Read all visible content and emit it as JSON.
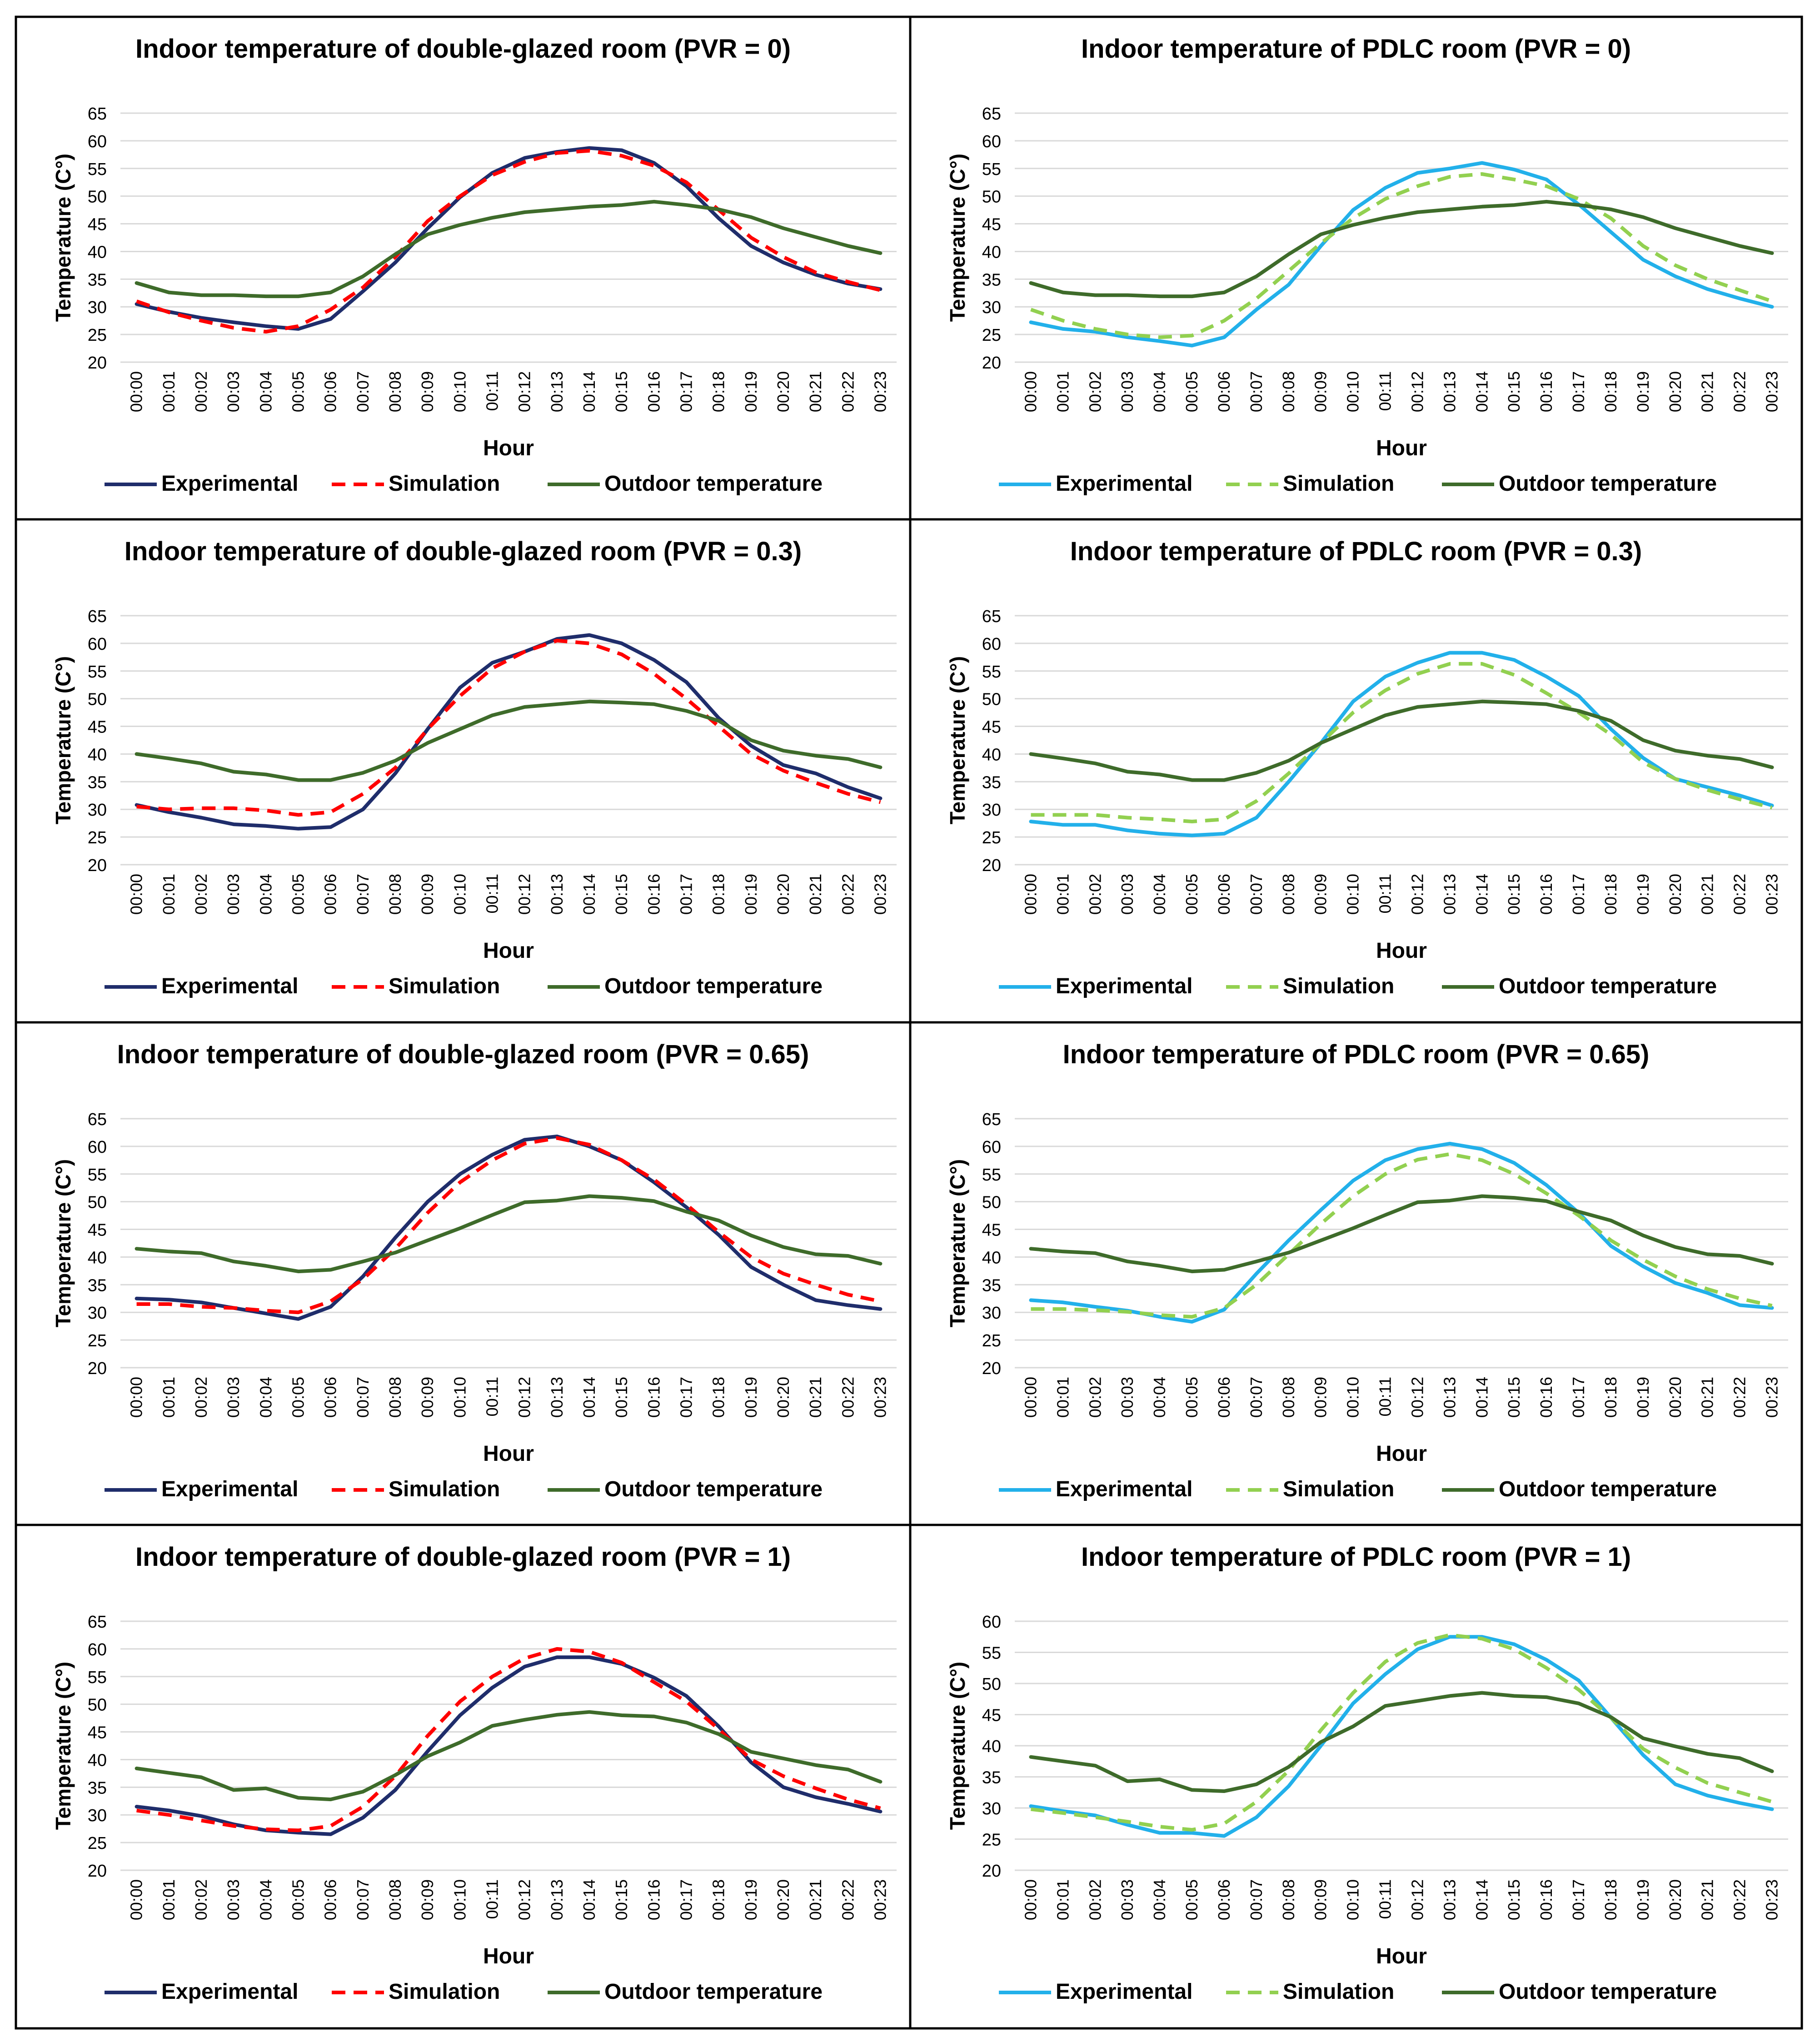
{
  "hours": [
    "00:00",
    "00:01",
    "00:02",
    "00:03",
    "00:04",
    "00:05",
    "00:06",
    "00:07",
    "00:08",
    "00:09",
    "00:10",
    "00:11",
    "00:12",
    "00:13",
    "00:14",
    "00:15",
    "00:16",
    "00:17",
    "00:18",
    "00:19",
    "00:20",
    "00:21",
    "00:22",
    "00:23"
  ],
  "colors": {
    "dg_experimental": "#1f2d6b",
    "dg_simulation": "#ff0000",
    "pdlc_experimental": "#22b0ea",
    "pdlc_simulation": "#92d050",
    "outdoor": "#3e6b2a",
    "grid": "#d9d9d9",
    "border": "#000000"
  },
  "chart_data": [
    {
      "type": "line",
      "title": "Indoor temperature of double-glazed room (PVR = 0)",
      "xlabel": "Hour",
      "ylabel": "Temperature (C°)",
      "ylim": [
        20,
        65
      ],
      "yticks": [
        20,
        25,
        30,
        35,
        40,
        45,
        50,
        55,
        60,
        65
      ],
      "series": [
        {
          "name": "Experimental",
          "style": "solid",
          "color": "#1f2d6b",
          "values": [
            30.5,
            29.1,
            28,
            27.2,
            26.5,
            26,
            27.8,
            32.8,
            38,
            44.2,
            49.8,
            54.2,
            56.9,
            58,
            58.7,
            58.3,
            56,
            51.8,
            46,
            41,
            38,
            35.8,
            34.2,
            33.2
          ]
        },
        {
          "name": "Simulation",
          "style": "dashed",
          "color": "#ff0000",
          "values": [
            31,
            29,
            27.5,
            26.2,
            25.5,
            26.5,
            29.5,
            33.5,
            39,
            45.5,
            50,
            53.8,
            56.2,
            57.8,
            58.2,
            57.3,
            55.5,
            52.5,
            47.5,
            42.5,
            39,
            36.2,
            34.5,
            33
          ]
        },
        {
          "name": "Outdoor temperature",
          "style": "solid",
          "color": "#3e6b2a",
          "values": [
            34.3,
            32.6,
            32.1,
            32.1,
            31.9,
            31.9,
            32.6,
            35.5,
            39.5,
            43.1,
            44.8,
            46.1,
            47.1,
            47.6,
            48.1,
            48.4,
            49,
            48.4,
            47.6,
            46.2,
            44.2,
            42.6,
            41,
            39.7
          ]
        }
      ]
    },
    {
      "type": "line",
      "title": "Indoor temperature of PDLC room (PVR = 0)",
      "xlabel": "Hour",
      "ylabel": "Temperature (C°)",
      "ylim": [
        20,
        65
      ],
      "yticks": [
        20,
        25,
        30,
        35,
        40,
        45,
        50,
        55,
        60,
        65
      ],
      "series": [
        {
          "name": "Experimental",
          "style": "solid",
          "color": "#22b0ea",
          "values": [
            27.2,
            26,
            25.5,
            24.5,
            23.8,
            23,
            24.5,
            29.5,
            34,
            41,
            47.5,
            51.5,
            54.2,
            55,
            56,
            54.8,
            53,
            48.5,
            43.5,
            38.5,
            35.5,
            33.2,
            31.5,
            30
          ]
        },
        {
          "name": "Simulation",
          "style": "dashed",
          "color": "#92d050",
          "values": [
            29.5,
            27.5,
            26,
            25,
            24.5,
            24.8,
            27.5,
            31.5,
            36.5,
            41.5,
            46,
            49.5,
            51.8,
            53.5,
            54,
            53,
            51.8,
            49.5,
            46,
            41,
            37.5,
            35,
            33,
            31
          ]
        },
        {
          "name": "Outdoor temperature",
          "style": "solid",
          "color": "#3e6b2a",
          "values": [
            34.3,
            32.6,
            32.1,
            32.1,
            31.9,
            31.9,
            32.6,
            35.5,
            39.5,
            43.1,
            44.8,
            46.1,
            47.1,
            47.6,
            48.1,
            48.4,
            49,
            48.4,
            47.6,
            46.2,
            44.2,
            42.6,
            41,
            39.7
          ]
        }
      ]
    },
    {
      "type": "line",
      "title": "Indoor temperature of double-glazed room (PVR = 0.3)",
      "xlabel": "Hour",
      "ylabel": "Temperature (C°)",
      "ylim": [
        20,
        65
      ],
      "yticks": [
        20,
        25,
        30,
        35,
        40,
        45,
        50,
        55,
        60,
        65
      ],
      "series": [
        {
          "name": "Experimental",
          "style": "solid",
          "color": "#1f2d6b",
          "values": [
            30.8,
            29.5,
            28.5,
            27.3,
            27,
            26.5,
            26.8,
            30,
            36.5,
            44.5,
            52,
            56.5,
            58.5,
            60.8,
            61.5,
            60,
            57,
            53,
            46.5,
            41.5,
            38,
            36.5,
            34,
            32
          ]
        },
        {
          "name": "Simulation",
          "style": "dashed",
          "color": "#ff0000",
          "values": [
            30.5,
            30,
            30.2,
            30.2,
            29.8,
            29,
            29.5,
            32.8,
            37.5,
            44.5,
            50.5,
            55.5,
            58.5,
            60.5,
            60,
            58,
            54.5,
            50,
            45,
            40,
            37,
            34.8,
            32.8,
            31.3
          ]
        },
        {
          "name": "Outdoor temperature",
          "style": "solid",
          "color": "#3e6b2a",
          "values": [
            40,
            39.2,
            38.3,
            36.8,
            36.3,
            35.3,
            35.3,
            36.6,
            38.8,
            42,
            44.5,
            47,
            48.5,
            49,
            49.5,
            49.3,
            49,
            47.8,
            46,
            42.5,
            40.6,
            39.7,
            39.1,
            37.6
          ]
        }
      ]
    },
    {
      "type": "line",
      "title": "Indoor temperature of PDLC room (PVR = 0.3)",
      "xlabel": "Hour",
      "ylabel": "Temperature (C°)",
      "ylim": [
        20,
        65
      ],
      "yticks": [
        20,
        25,
        30,
        35,
        40,
        45,
        50,
        55,
        60,
        65
      ],
      "series": [
        {
          "name": "Experimental",
          "style": "solid",
          "color": "#22b0ea",
          "values": [
            27.8,
            27.2,
            27.2,
            26.2,
            25.6,
            25.3,
            25.6,
            28.5,
            35,
            42,
            49.5,
            54,
            56.5,
            58.3,
            58.3,
            57,
            54,
            50.5,
            44.5,
            39.3,
            35.5,
            34,
            32.5,
            30.7
          ]
        },
        {
          "name": "Simulation",
          "style": "dashed",
          "color": "#92d050",
          "values": [
            29,
            29,
            29,
            28.5,
            28.2,
            27.8,
            28.2,
            31.5,
            36.5,
            42,
            47.5,
            51.5,
            54.5,
            56.3,
            56.3,
            54.3,
            51,
            47.5,
            43.5,
            38.5,
            35.5,
            33.5,
            31.8,
            30.3
          ]
        },
        {
          "name": "Outdoor temperature",
          "style": "solid",
          "color": "#3e6b2a",
          "values": [
            40,
            39.2,
            38.3,
            36.8,
            36.3,
            35.3,
            35.3,
            36.6,
            38.8,
            42,
            44.5,
            47,
            48.5,
            49,
            49.5,
            49.3,
            49,
            47.8,
            46,
            42.5,
            40.6,
            39.7,
            39.1,
            37.6
          ]
        }
      ]
    },
    {
      "type": "line",
      "title": "Indoor temperature of double-glazed room (PVR = 0.65)",
      "xlabel": "Hour",
      "ylabel": "Temperature (C°)",
      "ylim": [
        20,
        65
      ],
      "yticks": [
        20,
        25,
        30,
        35,
        40,
        45,
        50,
        55,
        60,
        65
      ],
      "series": [
        {
          "name": "Experimental",
          "style": "solid",
          "color": "#1f2d6b",
          "values": [
            32.5,
            32.3,
            31.8,
            30.8,
            29.8,
            28.8,
            31,
            36.5,
            43.5,
            50,
            55,
            58.5,
            61.2,
            61.8,
            60,
            57.5,
            53.5,
            49,
            44,
            38.2,
            35,
            32.2,
            31.3,
            30.6
          ]
        },
        {
          "name": "Simulation",
          "style": "dashed",
          "color": "#ff0000",
          "values": [
            31.5,
            31.5,
            31,
            30.8,
            30.3,
            30,
            32,
            36,
            41.5,
            48,
            53.5,
            57.5,
            60.5,
            61.5,
            60.3,
            57.5,
            54,
            49.5,
            44.5,
            40,
            37,
            35,
            33.2,
            32
          ]
        },
        {
          "name": "Outdoor temperature",
          "style": "solid",
          "color": "#3e6b2a",
          "values": [
            41.5,
            41,
            40.7,
            39.2,
            38.4,
            37.4,
            37.7,
            39.2,
            40.8,
            43,
            45.2,
            47.6,
            49.9,
            50.2,
            51,
            50.7,
            50.1,
            48.2,
            46.6,
            43.9,
            41.8,
            40.5,
            40.2,
            38.8
          ]
        }
      ]
    },
    {
      "type": "line",
      "title": "Indoor temperature of PDLC room (PVR = 0.65)",
      "xlabel": "Hour",
      "ylabel": "Temperature (C°)",
      "ylim": [
        20,
        65
      ],
      "yticks": [
        20,
        25,
        30,
        35,
        40,
        45,
        50,
        55,
        60,
        65
      ],
      "series": [
        {
          "name": "Experimental",
          "style": "solid",
          "color": "#22b0ea",
          "values": [
            32.2,
            31.8,
            31,
            30.3,
            29.2,
            28.3,
            30.5,
            37,
            43,
            48.5,
            53.8,
            57.5,
            59.5,
            60.5,
            59.5,
            57,
            53,
            48,
            42,
            38.3,
            35.3,
            33.5,
            31.3,
            30.8
          ]
        },
        {
          "name": "Simulation",
          "style": "dashed",
          "color": "#92d050",
          "values": [
            30.6,
            30.6,
            30.4,
            30.1,
            29.5,
            29.2,
            30.8,
            35,
            40.5,
            46,
            51,
            55,
            57.6,
            58.6,
            57.5,
            55,
            51.5,
            47.5,
            43,
            39.5,
            36.5,
            34.2,
            32.5,
            31.2
          ]
        },
        {
          "name": "Outdoor temperature",
          "style": "solid",
          "color": "#3e6b2a",
          "values": [
            41.5,
            41,
            40.7,
            39.2,
            38.4,
            37.4,
            37.7,
            39.2,
            40.8,
            43,
            45.2,
            47.6,
            49.9,
            50.2,
            51,
            50.7,
            50.1,
            48.2,
            46.6,
            43.9,
            41.8,
            40.5,
            40.2,
            38.8
          ]
        }
      ]
    },
    {
      "type": "line",
      "title": "Indoor temperature of double-glazed room (PVR = 1)",
      "xlabel": "Hour",
      "ylabel": "Temperature (C°)",
      "ylim": [
        20,
        65
      ],
      "yticks": [
        20,
        25,
        30,
        35,
        40,
        45,
        50,
        55,
        60,
        65
      ],
      "series": [
        {
          "name": "Experimental",
          "style": "solid",
          "color": "#1f2d6b",
          "values": [
            31.5,
            30.8,
            29.8,
            28.3,
            27.2,
            26.8,
            26.5,
            29.5,
            34.5,
            41.5,
            48,
            53,
            56.8,
            58.5,
            58.5,
            57.3,
            54.8,
            51.5,
            46,
            39.5,
            35,
            33.2,
            32,
            30.6
          ]
        },
        {
          "name": "Simulation",
          "style": "dashed",
          "color": "#ff0000",
          "values": [
            30.8,
            30,
            29,
            28,
            27.4,
            27.2,
            28,
            31.5,
            37,
            44.3,
            50.5,
            55,
            58.3,
            60,
            59.5,
            57.5,
            54,
            50.5,
            45.5,
            40,
            37,
            34.8,
            32.8,
            31.2
          ]
        },
        {
          "name": "Outdoor temperature",
          "style": "solid",
          "color": "#3e6b2a",
          "values": [
            38.4,
            37.6,
            36.8,
            34.5,
            34.8,
            33.1,
            32.8,
            34.2,
            37.2,
            40.6,
            43.1,
            46.1,
            47.2,
            48.1,
            48.6,
            48,
            47.8,
            46.7,
            44.6,
            41.4,
            40.2,
            39,
            38.2,
            36
          ]
        }
      ]
    },
    {
      "type": "line",
      "title": "Indoor temperature of PDLC room (PVR = 1)",
      "xlabel": "Hour",
      "ylabel": "Temperature (C°)",
      "ylim": [
        20,
        60
      ],
      "yticks": [
        20,
        25,
        30,
        35,
        40,
        45,
        50,
        55,
        60
      ],
      "series": [
        {
          "name": "Experimental",
          "style": "solid",
          "color": "#22b0ea",
          "values": [
            30.3,
            29.5,
            28.8,
            27.3,
            26,
            26,
            25.5,
            28.5,
            33.5,
            40,
            46.8,
            51.5,
            55.5,
            57.5,
            57.5,
            56.3,
            53.8,
            50.5,
            44.5,
            38.5,
            33.8,
            32,
            30.8,
            29.8
          ]
        },
        {
          "name": "Simulation",
          "style": "dashed",
          "color": "#92d050",
          "values": [
            29.8,
            29.2,
            28.5,
            27.8,
            27,
            26.5,
            27.5,
            31,
            36,
            42.5,
            48.5,
            53.5,
            56.5,
            57.8,
            57.2,
            55.5,
            52.5,
            49,
            44.5,
            39.5,
            36.5,
            34,
            32.5,
            31
          ]
        },
        {
          "name": "Outdoor temperature",
          "style": "solid",
          "color": "#3e6b2a",
          "values": [
            38.2,
            37.5,
            36.8,
            34.3,
            34.6,
            32.9,
            32.7,
            33.8,
            36.6,
            40.6,
            43.1,
            46.4,
            47.2,
            48,
            48.5,
            48,
            47.8,
            46.8,
            44.6,
            41.2,
            39.9,
            38.7,
            38,
            35.9
          ]
        }
      ]
    }
  ]
}
